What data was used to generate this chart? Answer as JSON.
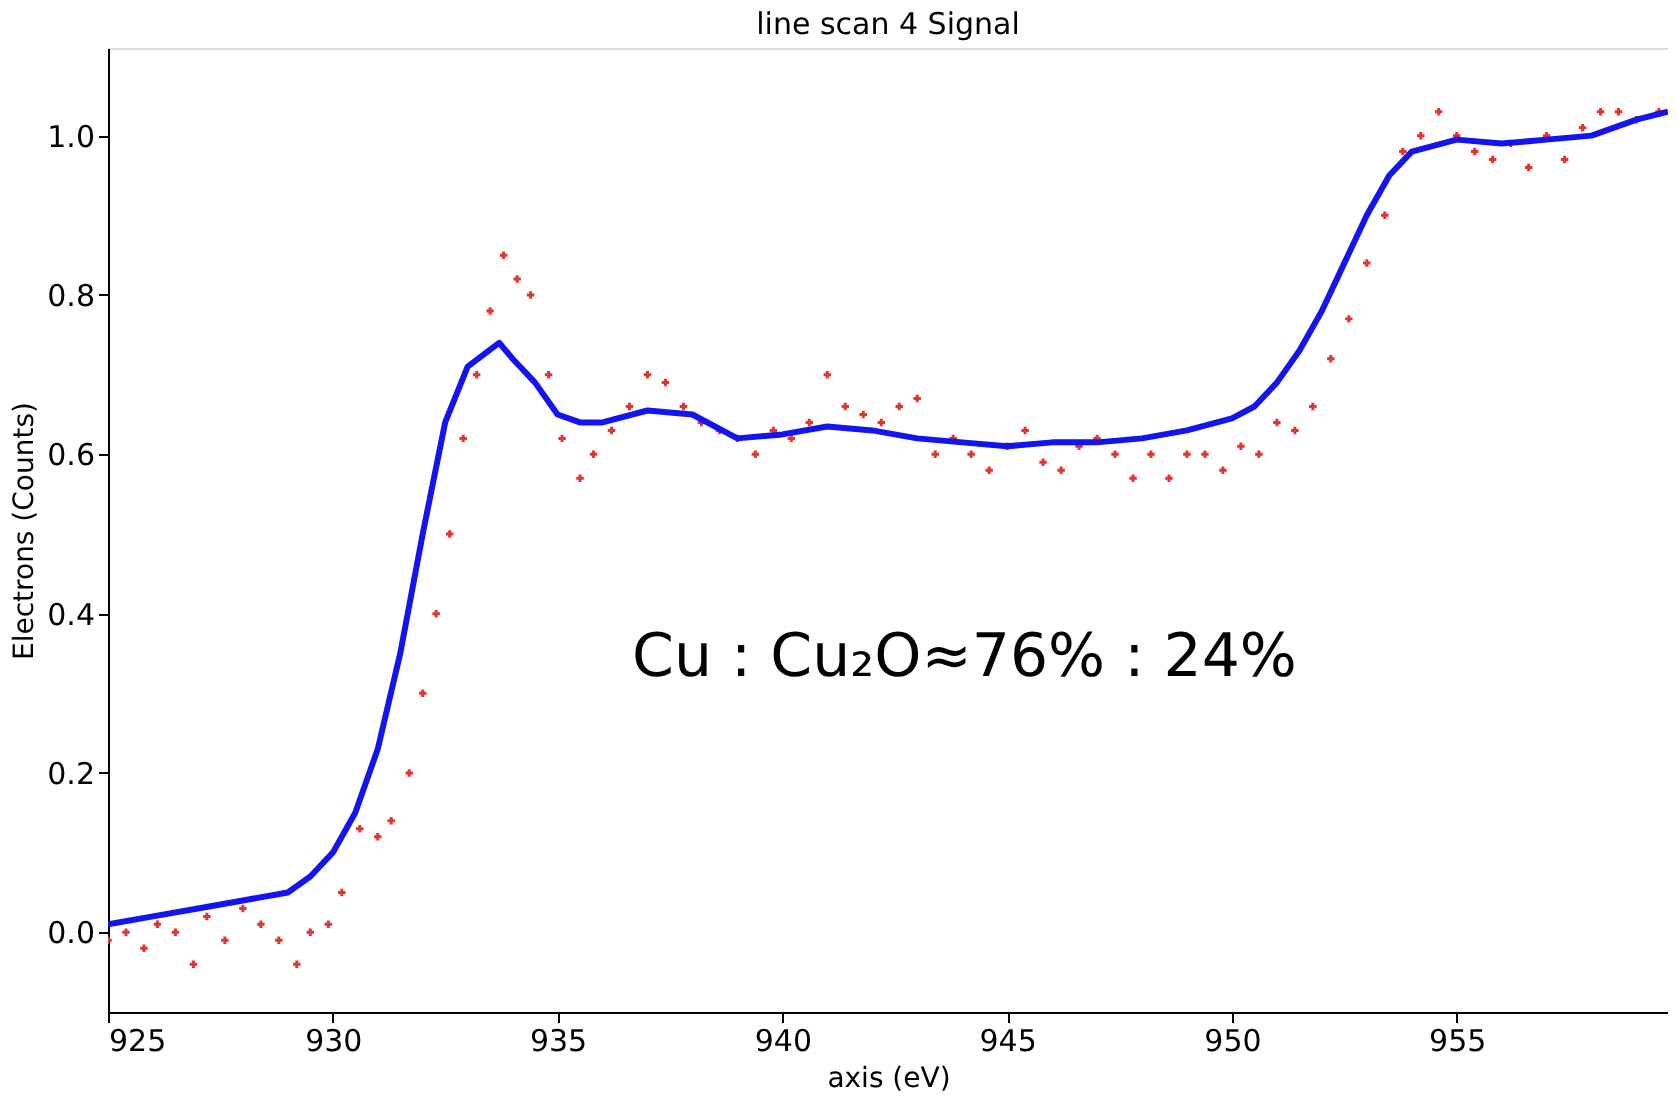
{
  "chart_data": {
    "type": "scatter",
    "title": "line scan 4 Signal",
    "xlabel": "axis (eV)",
    "ylabel": "Electrons (Counts)",
    "xlim": [
      925,
      959.7
    ],
    "ylim": [
      -0.1,
      1.11
    ],
    "xticks": [
      925,
      930,
      935,
      940,
      945,
      950,
      955
    ],
    "yticks": [
      {
        "value": 0,
        "label": "0.0"
      },
      0.2,
      0.4,
      0.6,
      0.8,
      {
        "value": 1,
        "label": "1.0"
      }
    ],
    "grid": false,
    "line_style": "solid",
    "annotations": [
      "Cu : Cu₂O≈76% : 24%"
    ],
    "series": [
      {
        "color": "#e8322e",
        "marker": "cross",
        "x": [
          925,
          925.4,
          925.8,
          926.1,
          926.5,
          926.9,
          927.2,
          927.6,
          928,
          928.4,
          928.8,
          929.2,
          929.5,
          929.9,
          930.2,
          930.6,
          931,
          931.3,
          931.7,
          932,
          932.3,
          932.6,
          932.9,
          933.2,
          933.5,
          933.8,
          934.1,
          934.4,
          934.8,
          935.1,
          935.5,
          935.8,
          936.2,
          936.6,
          937,
          937.4,
          937.8,
          938.2,
          938.6,
          939,
          939.4,
          939.8,
          940.2,
          940.6,
          941,
          941.4,
          941.8,
          942.2,
          942.6,
          943,
          943.4,
          943.8,
          944.2,
          944.6,
          945,
          945.4,
          945.8,
          946.2,
          946.6,
          947,
          947.4,
          947.8,
          948.2,
          948.6,
          949,
          949.4,
          949.8,
          950.2,
          950.6,
          951,
          951.4,
          951.8,
          952.2,
          952.6,
          953,
          953.4,
          953.8,
          954.2,
          954.6,
          955,
          955.4,
          955.8,
          956.2,
          956.6,
          957,
          957.4,
          957.8,
          958.2,
          958.6,
          959,
          959.5
        ],
        "values": [
          -0.01,
          0.0,
          -0.02,
          0.01,
          0.0,
          -0.04,
          0.02,
          -0.01,
          0.03,
          0.01,
          -0.01,
          -0.04,
          0.0,
          0.01,
          0.05,
          0.13,
          0.12,
          0.14,
          0.2,
          0.3,
          0.4,
          0.5,
          0.62,
          0.7,
          0.78,
          0.85,
          0.82,
          0.8,
          0.7,
          0.62,
          0.57,
          0.6,
          0.63,
          0.66,
          0.7,
          0.69,
          0.66,
          0.64,
          0.63,
          0.62,
          0.6,
          0.63,
          0.62,
          0.64,
          0.7,
          0.66,
          0.65,
          0.64,
          0.66,
          0.67,
          0.6,
          0.62,
          0.6,
          0.58,
          0.61,
          0.63,
          0.59,
          0.58,
          0.61,
          0.62,
          0.6,
          0.57,
          0.6,
          0.57,
          0.6,
          0.6,
          0.58,
          0.61,
          0.6,
          0.64,
          0.63,
          0.66,
          0.72,
          0.77,
          0.84,
          0.9,
          0.98,
          1.0,
          1.03,
          1.0,
          0.98,
          0.97,
          0.99,
          0.96,
          1.0,
          0.97,
          1.01,
          1.03,
          1.03,
          1.02,
          1.03
        ]
      },
      {
        "type": "line",
        "color": "#1414f0",
        "marker": "none",
        "x": [
          925,
          926,
          927,
          928,
          929,
          929.5,
          930,
          930.5,
          931,
          931.5,
          932,
          932.5,
          933,
          933.7,
          934,
          934.5,
          935,
          935.5,
          936,
          937,
          938,
          939,
          940,
          941,
          942,
          943,
          944,
          945,
          946,
          947,
          948,
          949,
          950,
          950.5,
          951,
          951.5,
          952,
          952.5,
          953,
          953.5,
          954,
          955,
          956,
          957,
          958,
          959,
          959.7
        ],
        "values": [
          0.01,
          0.02,
          0.03,
          0.04,
          0.05,
          0.07,
          0.1,
          0.15,
          0.23,
          0.35,
          0.5,
          0.64,
          0.71,
          0.74,
          0.72,
          0.69,
          0.65,
          0.64,
          0.64,
          0.655,
          0.65,
          0.62,
          0.625,
          0.635,
          0.63,
          0.62,
          0.615,
          0.61,
          0.615,
          0.615,
          0.62,
          0.63,
          0.645,
          0.66,
          0.69,
          0.73,
          0.78,
          0.84,
          0.9,
          0.95,
          0.98,
          0.995,
          0.99,
          0.995,
          1.0,
          1.02,
          1.03
        ]
      }
    ]
  }
}
